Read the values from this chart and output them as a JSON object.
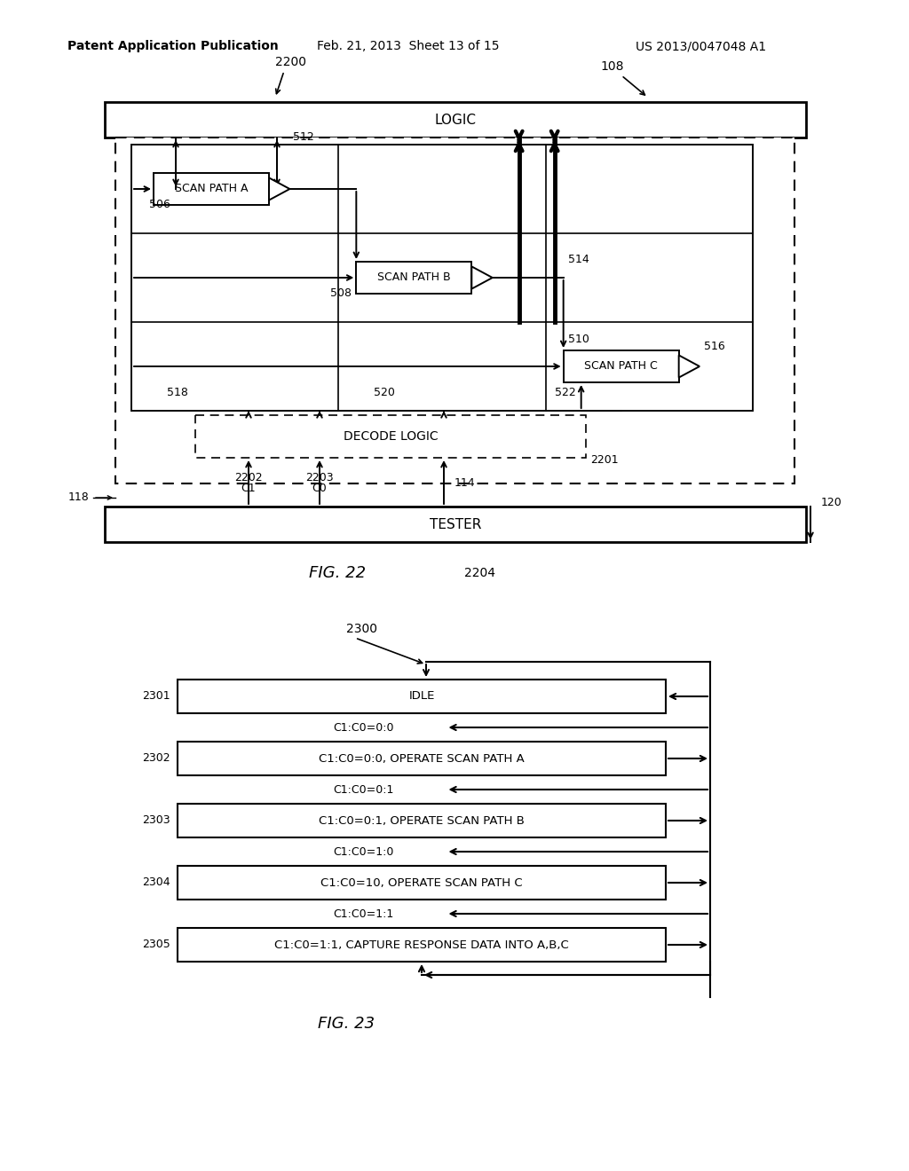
{
  "bg_color": "#ffffff",
  "header_left": "Patent Application Publication",
  "header_mid": "Feb. 21, 2013  Sheet 13 of 15",
  "header_right": "US 2013/0047048 A1",
  "fig22_caption": "FIG. 22",
  "fig23_caption": "FIG. 23",
  "ref_2204": "2204",
  "ref_2200": "2200",
  "ref_108": "108",
  "ref_512": "512",
  "ref_506": "506",
  "ref_514": "514",
  "ref_508": "508",
  "ref_510": "510",
  "ref_516": "516",
  "ref_518": "518",
  "ref_520": "520",
  "ref_522": "522",
  "ref_2201": "2201",
  "ref_118": "118",
  "ref_120": "120",
  "ref_C1": "C1",
  "ref_2202": "2202",
  "ref_C0": "C0",
  "ref_2203": "2203",
  "ref_114": "114",
  "ref_2300": "2300",
  "label_logic": "LOGIC",
  "label_tester": "TESTER",
  "label_decode": "DECODE LOGIC",
  "label_spa": "SCAN PATH A",
  "label_spb": "SCAN PATH B",
  "label_spc": "SCAN PATH C",
  "state_refs": [
    "2301",
    "2302",
    "2303",
    "2304",
    "2305"
  ],
  "state_labels": [
    "IDLE",
    "C1:C0=0:0, OPERATE SCAN PATH A",
    "C1:C0=0:1, OPERATE SCAN PATH B",
    "C1:C0=10, OPERATE SCAN PATH C",
    "C1:C0=1:1, CAPTURE RESPONSE DATA INTO A,B,C"
  ],
  "trans_labels": [
    "C1:C0=0:0",
    "C1:C0=0:1",
    "C1:C0=1:0",
    "C1:C0=1:1"
  ]
}
